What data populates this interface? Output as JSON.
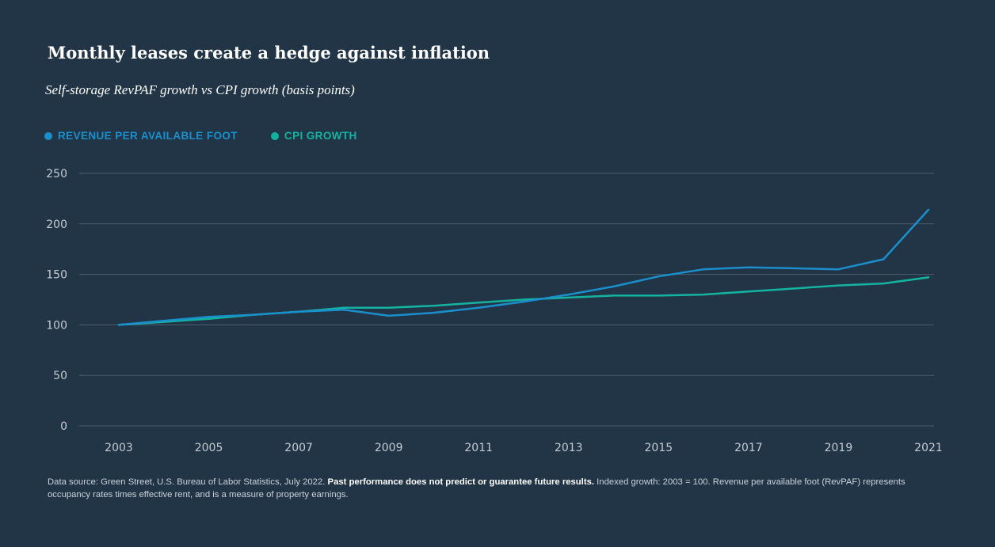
{
  "colors": {
    "background": "#213547",
    "revpaf": "#1a8fcc",
    "cpi": "#14b3a0",
    "grid": "#4b5d6d",
    "tick": "#c5ccd3"
  },
  "chart_data": {
    "type": "line",
    "title": "Monthly leases create a hedge against inflation",
    "subtitle": "Self-storage RevPAF growth vs CPI growth (basis points)",
    "xlabel": "",
    "ylabel": "",
    "x": [
      2003,
      2004,
      2005,
      2006,
      2007,
      2008,
      2009,
      2010,
      2011,
      2012,
      2013,
      2014,
      2015,
      2016,
      2017,
      2018,
      2019,
      2020,
      2021
    ],
    "x_ticks": [
      "2003",
      "2005",
      "2007",
      "2009",
      "2011",
      "2013",
      "2015",
      "2017",
      "2019",
      "2021"
    ],
    "x_tick_values": [
      2003,
      2005,
      2007,
      2009,
      2011,
      2013,
      2015,
      2017,
      2019,
      2021
    ],
    "y_ticks": [
      "0",
      "50",
      "100",
      "150",
      "200",
      "250"
    ],
    "y_tick_values": [
      0,
      50,
      100,
      150,
      200,
      250
    ],
    "ylim": [
      0,
      250
    ],
    "xlim": [
      2003,
      2021
    ],
    "grid": true,
    "legend_position": "top-left",
    "series": [
      {
        "name": "REVENUE PER AVAILABLE FOOT",
        "key": "revpaf",
        "values": [
          100,
          104,
          108,
          110,
          113,
          115,
          109,
          112,
          117,
          123,
          130,
          138,
          148,
          155,
          157,
          156,
          155,
          165,
          214
        ]
      },
      {
        "name": "CPI GROWTH",
        "key": "cpi",
        "values": [
          100,
          103,
          106,
          110,
          113,
          117,
          117,
          119,
          122,
          125,
          127,
          129,
          129,
          130,
          133,
          136,
          139,
          141,
          147
        ]
      }
    ]
  },
  "footnote": {
    "source": "Data source: Green Street, U.S. Bureau of Labor Statistics, July 2022.",
    "disclaimer": "Past performance does not predict or guarantee future results.",
    "detail": "Indexed growth: 2003 = 100. Revenue per available foot (RevPAF) represents occupancy rates times effective rent, and is a measure of property earnings."
  }
}
